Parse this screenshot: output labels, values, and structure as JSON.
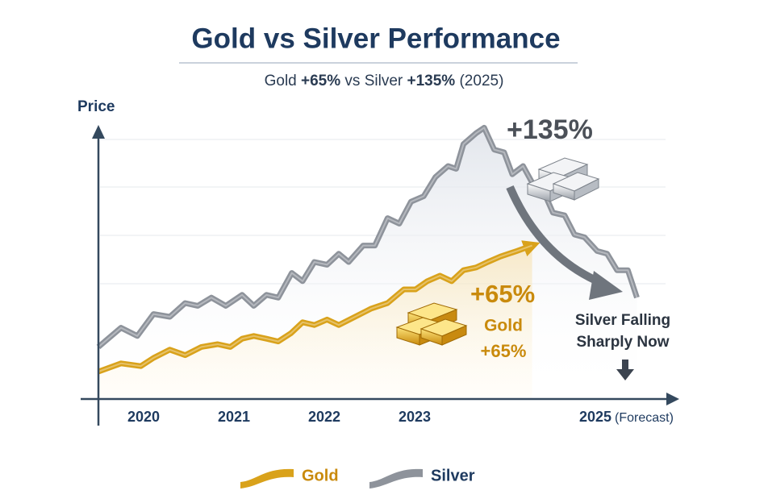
{
  "chart_data": {
    "type": "line",
    "title": "Gold vs Silver Performance",
    "subtitle_parts": [
      "Gold ",
      "+65%",
      " vs Silver ",
      "+135%",
      " (2025)"
    ],
    "y_label": "Price",
    "xlim": [
      2019.5,
      2026
    ],
    "ylim": [
      0,
      100
    ],
    "xticks": [
      2020,
      2021,
      2022,
      2023,
      2025
    ],
    "forecast_label": "(Forecast)",
    "series": [
      {
        "name": "Silver",
        "color": "#8e939b",
        "x": [
          2019.5,
          2019.75,
          2019.93,
          2020.11,
          2020.29,
          2020.46,
          2020.6,
          2020.75,
          2020.91,
          2021.09,
          2021.22,
          2021.36,
          2021.49,
          2021.64,
          2021.76,
          2021.89,
          2022.03,
          2022.16,
          2022.27,
          2022.43,
          2022.56,
          2022.7,
          2022.83,
          2022.96,
          2023.1,
          2023.23,
          2023.37,
          2023.46,
          2023.54,
          2023.68,
          2023.77,
          2023.88,
          2023.99,
          2024.08,
          2024.2,
          2024.3,
          2024.41,
          2024.53,
          2024.66,
          2024.77,
          2024.88,
          2025.02,
          2025.13,
          2025.24,
          2025.36,
          2025.46
        ],
        "values": [
          19,
          26,
          23,
          31,
          30,
          35,
          34,
          37,
          34,
          38,
          34,
          38,
          37,
          46,
          43,
          50,
          49,
          53,
          50,
          56,
          56,
          66,
          64,
          72,
          74,
          81,
          85,
          84,
          93,
          97,
          99,
          91,
          90,
          82,
          85,
          79,
          77,
          68,
          67,
          60,
          59,
          54,
          53,
          47,
          47,
          37
        ]
      },
      {
        "name": "Gold",
        "color": "#d9a21b",
        "x": [
          2019.5,
          2019.75,
          2019.97,
          2020.11,
          2020.29,
          2020.46,
          2020.64,
          2020.82,
          2020.96,
          2021.09,
          2021.22,
          2021.36,
          2021.49,
          2021.63,
          2021.76,
          2021.89,
          2022.03,
          2022.16,
          2022.34,
          2022.52,
          2022.7,
          2022.88,
          2023.01,
          2023.14,
          2023.28,
          2023.41,
          2023.54,
          2023.68,
          2023.81,
          2023.95,
          2024.13,
          2024.3
        ],
        "values": [
          10,
          13,
          12,
          15,
          18,
          16,
          19,
          20,
          19,
          22,
          23,
          22,
          21,
          24,
          28,
          27,
          29,
          27,
          30,
          33,
          35,
          40,
          40,
          43,
          45,
          43,
          47,
          48,
          50,
          52,
          54,
          56
        ]
      }
    ],
    "annotations": {
      "silver_gain": "+135%",
      "gold_gain": "+65%",
      "gold_label": [
        "Gold",
        "+65%"
      ],
      "silver_note": [
        "Silver Falling",
        "Sharply Now"
      ]
    }
  }
}
